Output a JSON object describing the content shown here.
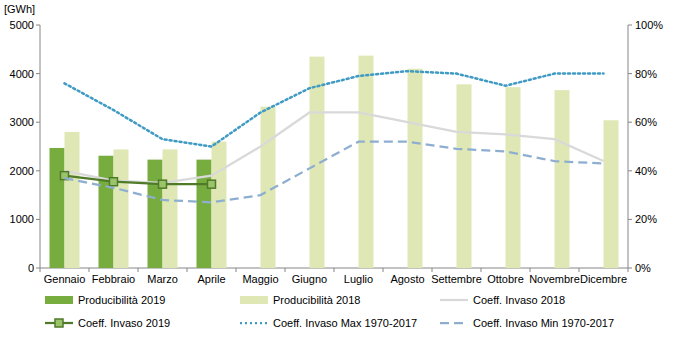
{
  "chart_data": {
    "type": "bar",
    "y_label": "[GWh]",
    "categories": [
      "Gennaio",
      "Febbraio",
      "Marzo",
      "Aprile",
      "Maggio",
      "Giugno",
      "Luglio",
      "Agosto",
      "Settembre",
      "Ottobre",
      "Novembre",
      "Dicembre"
    ],
    "ylim": [
      0,
      5000
    ],
    "yticks": [
      0,
      1000,
      2000,
      3000,
      4000,
      5000
    ],
    "y2lim": [
      0,
      100
    ],
    "y2ticks": [
      {
        "value": 0,
        "label": "0%"
      },
      {
        "value": 20,
        "label": "20%"
      },
      {
        "value": 40,
        "label": "40%"
      },
      {
        "value": 60,
        "label": "60%"
      },
      {
        "value": 80,
        "label": "80%"
      },
      {
        "value": 100,
        "label": "100%"
      }
    ],
    "grid": false,
    "legend": "bottom",
    "series": [
      {
        "name": "Producibilità 2019",
        "type": "bar",
        "color": "#77ad3f",
        "values": [
          2470,
          2310,
          2230,
          2230,
          null,
          null,
          null,
          null,
          null,
          null,
          null,
          null
        ]
      },
      {
        "name": "Producibilità 2018",
        "type": "bar",
        "color": "#dfe8b4",
        "values": [
          2800,
          2440,
          2440,
          2600,
          3320,
          4350,
          4370,
          4100,
          3780,
          3720,
          3660,
          3040
        ]
      },
      {
        "name": "Coeff. Invaso 2018",
        "type": "line",
        "axis": "y2",
        "color": "#d9d9d9",
        "line_style": "solid",
        "values": [
          40,
          36,
          35,
          38,
          50,
          64,
          64,
          60,
          56,
          55,
          53,
          44
        ]
      },
      {
        "name": "Coeff. Invaso 2019",
        "type": "line",
        "axis": "y2",
        "color": "#4f7a28",
        "line_style": "solid",
        "marker": "square",
        "values": [
          38,
          35.5,
          34.5,
          34.5,
          null,
          null,
          null,
          null,
          null,
          null,
          null,
          null
        ]
      },
      {
        "name": "Coeff. Invaso Max 1970-2017",
        "type": "line",
        "axis": "y2",
        "color": "#3f9ac4",
        "line_style": "dotted",
        "values": [
          76,
          65,
          53,
          50,
          64,
          74,
          79,
          81,
          80,
          75,
          80,
          80
        ]
      },
      {
        "name": "Coeff. Invaso Min 1970-2017",
        "type": "line",
        "axis": "y2",
        "color": "#8eaed0",
        "line_style": "dashed",
        "values": [
          37,
          33,
          28,
          27,
          30,
          41,
          52,
          52,
          49,
          48,
          44,
          43
        ]
      }
    ]
  }
}
